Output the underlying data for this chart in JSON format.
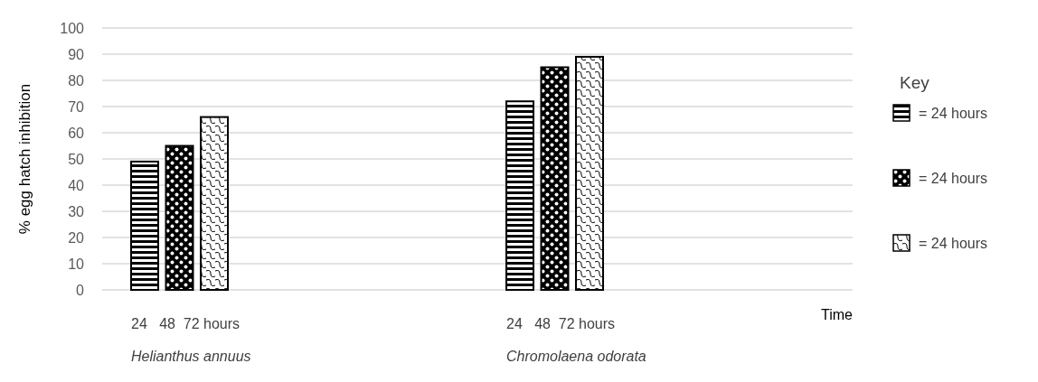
{
  "chart_data": {
    "type": "bar",
    "categories": [
      "Helianthus annuus",
      "Chromolaena odorata"
    ],
    "series": [
      {
        "name": "= 24 hours",
        "color": "#000000",
        "values": [
          49,
          72
        ]
      },
      {
        "name": "= 24 hours",
        "color": "#000000",
        "values": [
          55,
          85
        ]
      },
      {
        "name": "= 24 hours",
        "color": "#000000",
        "values": [
          66,
          89
        ]
      }
    ],
    "ylabel": "% egg hatch inhibition",
    "xlabel": "Time",
    "legend_title": "Key",
    "legend": "right",
    "annotations": [
      "24   48  72 hours",
      "24   48  72 hours"
    ],
    "ylim": [
      0,
      100
    ],
    "yticks": [
      0,
      10,
      20,
      30,
      40,
      50,
      60,
      70,
      80,
      90,
      100
    ],
    "grid": "y"
  }
}
